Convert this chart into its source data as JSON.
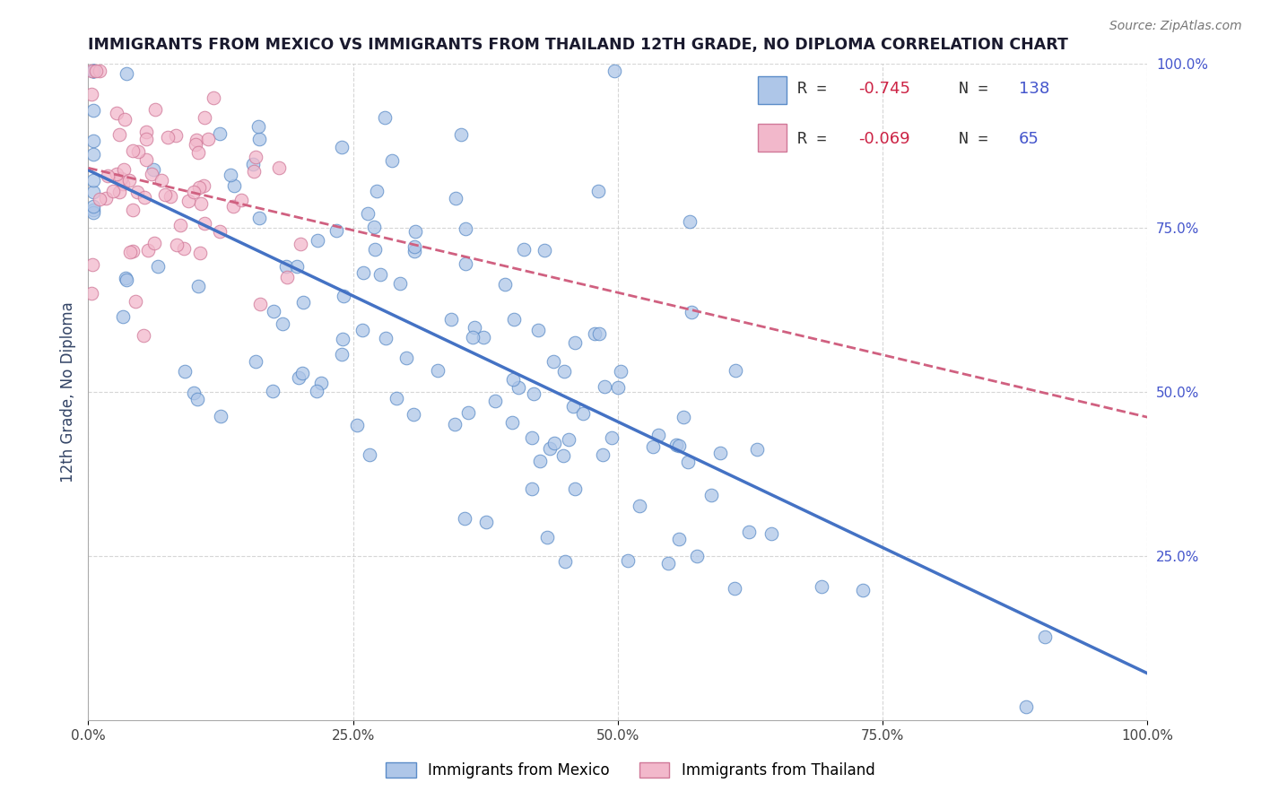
{
  "title": "IMMIGRANTS FROM MEXICO VS IMMIGRANTS FROM THAILAND 12TH GRADE, NO DIPLOMA CORRELATION CHART",
  "source": "Source: ZipAtlas.com",
  "ylabel": "12th Grade, No Diploma",
  "r_mexico": -0.745,
  "n_mexico": 138,
  "r_thailand": -0.069,
  "n_thailand": 65,
  "legend_series": [
    "Immigrants from Mexico",
    "Immigrants from Thailand"
  ],
  "color_mexico_fill": "#aec6e8",
  "color_mexico_edge": "#5b8cc8",
  "color_mexico_line": "#4472c4",
  "color_thailand_fill": "#f2b8cb",
  "color_thailand_edge": "#d07898",
  "color_thailand_line": "#d06080",
  "title_color": "#1a1a2e",
  "r_color": "#cc2244",
  "n_color": "#4455cc",
  "background_color": "#ffffff",
  "grid_color": "#cccccc",
  "xlim": [
    0,
    100
  ],
  "ylim": [
    0,
    100
  ],
  "xtick_labels": [
    "0.0%",
    "25.0%",
    "50.0%",
    "75.0%",
    "100.0%"
  ],
  "ytick_labels": [
    "25.0%",
    "50.0%",
    "75.0%",
    "100.0%"
  ],
  "xtick_vals": [
    0,
    25,
    50,
    75,
    100
  ],
  "ytick_vals": [
    25,
    50,
    75,
    100
  ]
}
